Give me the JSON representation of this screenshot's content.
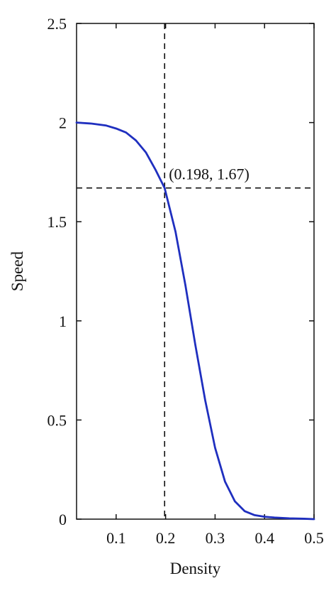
{
  "chart_data": {
    "type": "line",
    "title": "",
    "xlabel": "Density",
    "ylabel": "Speed",
    "xlim": [
      0.02,
      0.5
    ],
    "ylim": [
      0,
      2.5
    ],
    "x_ticks": [
      0.1,
      0.2,
      0.3,
      0.4,
      0.5
    ],
    "x_tick_labels": [
      "0.1",
      "0.2",
      "0.3",
      "0.4",
      "0.5"
    ],
    "y_ticks": [
      0,
      0.5,
      1,
      1.5,
      2,
      2.5
    ],
    "y_tick_labels": [
      "0",
      "0.5",
      "1",
      "1.5",
      "2",
      "2.5"
    ],
    "grid": false,
    "series": [
      {
        "color": "#1f2fbf",
        "x": [
          0.02,
          0.05,
          0.08,
          0.1,
          0.12,
          0.14,
          0.16,
          0.18,
          0.198,
          0.22,
          0.24,
          0.26,
          0.28,
          0.3,
          0.32,
          0.34,
          0.36,
          0.38,
          0.4,
          0.42,
          0.45,
          0.48,
          0.5
        ],
        "y": [
          2.0,
          1.995,
          1.985,
          1.97,
          1.95,
          1.91,
          1.85,
          1.76,
          1.67,
          1.45,
          1.18,
          0.88,
          0.6,
          0.36,
          0.19,
          0.09,
          0.04,
          0.02,
          0.012,
          0.008,
          0.004,
          0.002,
          0.0
        ]
      }
    ],
    "reference_lines": {
      "x": 0.198,
      "y": 1.67,
      "style": "dashed",
      "color": "#111111"
    },
    "annotation": {
      "text": "(0.198, 1.67)",
      "x": 0.198,
      "y": 1.67
    }
  }
}
